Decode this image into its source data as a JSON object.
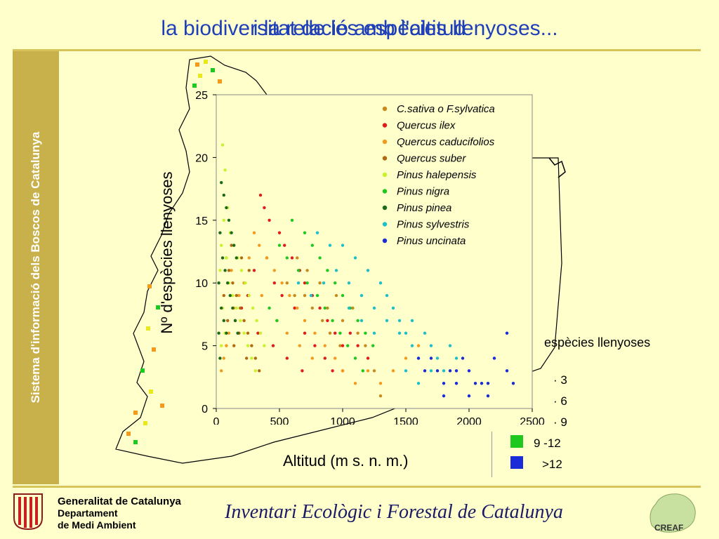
{
  "slide": {
    "title_back": "la biodiversitat de les espècies llenyoses...",
    "title_front": "i la relació amb l'altitud",
    "sidebar_text": "Sistema d'informació dels Boscos de Catalunya",
    "footer": {
      "gov_line1": "Generalitat de Catalunya",
      "gov_line2": "Departament",
      "gov_line3": "de Medi Ambient",
      "inventory": "Inventari Ecològic i Forestal de Catalunya",
      "creaf_label": "CREAF"
    },
    "map_legend": {
      "title": "espècies llenyoses",
      "items": [
        {
          "label": "· 3"
        },
        {
          "label": "· 6"
        },
        {
          "label": "· 9"
        },
        {
          "label": "9 -12",
          "color": "#1ec81e"
        },
        {
          "label": ">12",
          "color": "#1a2bd8"
        }
      ]
    }
  },
  "chart_data": {
    "type": "scatter",
    "xlabel": "Altitud (m s. n. m.)",
    "ylabel": "Nº d'espècies llenyoses",
    "xlim": [
      0,
      2500
    ],
    "ylim": [
      0,
      25
    ],
    "xticks": [
      0,
      500,
      1000,
      1500,
      2000,
      2500
    ],
    "yticks": [
      0,
      5,
      10,
      15,
      20,
      25
    ],
    "legend_position": "top-right",
    "series": [
      {
        "name": "C.sativa o F.sylvatica",
        "color": "#c98a1c",
        "points": [
          [
            560,
            10
          ],
          [
            620,
            9
          ],
          [
            700,
            9
          ],
          [
            760,
            8
          ],
          [
            820,
            10
          ],
          [
            880,
            8
          ],
          [
            950,
            9
          ],
          [
            1000,
            7
          ],
          [
            1080,
            8
          ],
          [
            1120,
            6
          ],
          [
            640,
            12
          ],
          [
            900,
            6
          ],
          [
            1250,
            3
          ],
          [
            1300,
            1
          ],
          [
            980,
            5
          ],
          [
            720,
            11
          ],
          [
            840,
            7
          ],
          [
            1180,
            5
          ]
        ]
      },
      {
        "name": "Quercus ilex",
        "color": "#e01c1c",
        "points": [
          [
            350,
            17
          ],
          [
            380,
            16
          ],
          [
            420,
            15
          ],
          [
            500,
            14
          ],
          [
            540,
            13
          ],
          [
            600,
            12
          ],
          [
            660,
            11
          ],
          [
            700,
            10
          ],
          [
            760,
            9
          ],
          [
            820,
            8
          ],
          [
            880,
            7
          ],
          [
            940,
            6
          ],
          [
            1000,
            5
          ],
          [
            1060,
            6
          ],
          [
            1120,
            5
          ],
          [
            1200,
            4
          ],
          [
            400,
            12
          ],
          [
            460,
            10
          ],
          [
            520,
            9
          ],
          [
            300,
            11
          ],
          [
            250,
            9
          ],
          [
            200,
            8
          ],
          [
            150,
            7
          ],
          [
            620,
            8
          ],
          [
            700,
            6
          ],
          [
            780,
            5
          ],
          [
            860,
            4
          ],
          [
            920,
            3
          ],
          [
            1000,
            3
          ],
          [
            330,
            6
          ],
          [
            450,
            5
          ],
          [
            560,
            4
          ],
          [
            680,
            3
          ]
        ]
      },
      {
        "name": "Quercus caducifolios",
        "color": "#f39a1c",
        "points": [
          [
            300,
            14
          ],
          [
            340,
            13
          ],
          [
            400,
            12
          ],
          [
            460,
            11
          ],
          [
            520,
            10
          ],
          [
            580,
            9
          ],
          [
            640,
            8
          ],
          [
            700,
            7
          ],
          [
            780,
            6
          ],
          [
            860,
            5
          ],
          [
            940,
            4
          ],
          [
            1000,
            3
          ],
          [
            1100,
            2
          ],
          [
            1200,
            3
          ],
          [
            260,
            12
          ],
          [
            220,
            10
          ],
          [
            180,
            9
          ],
          [
            140,
            8
          ],
          [
            100,
            6
          ],
          [
            80,
            5
          ],
          [
            60,
            4
          ],
          [
            40,
            3
          ],
          [
            120,
            11
          ],
          [
            360,
            9
          ],
          [
            480,
            7
          ],
          [
            560,
            6
          ],
          [
            660,
            5
          ],
          [
            760,
            4
          ],
          [
            1300,
            2
          ],
          [
            1400,
            3
          ],
          [
            1500,
            4
          ],
          [
            1600,
            5
          ]
        ]
      },
      {
        "name": "Quercus suber",
        "color": "#b06a10",
        "points": [
          [
            80,
            12
          ],
          [
            100,
            11
          ],
          [
            130,
            10
          ],
          [
            160,
            9
          ],
          [
            190,
            8
          ],
          [
            220,
            7
          ],
          [
            250,
            6
          ],
          [
            280,
            5
          ],
          [
            310,
            4
          ],
          [
            340,
            3
          ],
          [
            120,
            13
          ],
          [
            200,
            12
          ],
          [
            260,
            11
          ],
          [
            180,
            6
          ],
          [
            240,
            4
          ],
          [
            140,
            5
          ],
          [
            90,
            7
          ],
          [
            60,
            9
          ]
        ]
      },
      {
        "name": "Pinus halepensis",
        "color": "#c8f22a",
        "points": [
          [
            50,
            21
          ],
          [
            70,
            19
          ],
          [
            90,
            16
          ],
          [
            110,
            14
          ],
          [
            140,
            13
          ],
          [
            170,
            12
          ],
          [
            200,
            11
          ],
          [
            230,
            10
          ],
          [
            260,
            9
          ],
          [
            290,
            8
          ],
          [
            320,
            7
          ],
          [
            350,
            6
          ],
          [
            380,
            5
          ],
          [
            60,
            15
          ],
          [
            80,
            12
          ],
          [
            100,
            10
          ],
          [
            130,
            9
          ],
          [
            160,
            8
          ],
          [
            190,
            7
          ],
          [
            220,
            6
          ],
          [
            250,
            5
          ],
          [
            280,
            4
          ],
          [
            310,
            3
          ],
          [
            40,
            13
          ],
          [
            30,
            11
          ],
          [
            50,
            8
          ],
          [
            70,
            6
          ],
          [
            40,
            5
          ]
        ]
      },
      {
        "name": "Pinus nigra",
        "color": "#1ec81e",
        "points": [
          [
            600,
            15
          ],
          [
            700,
            14
          ],
          [
            760,
            13
          ],
          [
            820,
            12
          ],
          [
            880,
            11
          ],
          [
            940,
            10
          ],
          [
            1000,
            9
          ],
          [
            1060,
            8
          ],
          [
            1120,
            7
          ],
          [
            1180,
            6
          ],
          [
            1240,
            5
          ],
          [
            500,
            13
          ],
          [
            560,
            12
          ],
          [
            650,
            11
          ],
          [
            720,
            10
          ],
          [
            800,
            9
          ],
          [
            860,
            8
          ],
          [
            920,
            7
          ],
          [
            980,
            6
          ],
          [
            1040,
            5
          ],
          [
            1100,
            4
          ],
          [
            1160,
            3
          ],
          [
            420,
            8
          ],
          [
            480,
            7
          ]
        ]
      },
      {
        "name": "Pinus pinea",
        "color": "#1a6a1a",
        "points": [
          [
            40,
            18
          ],
          [
            60,
            17
          ],
          [
            80,
            16
          ],
          [
            100,
            15
          ],
          [
            120,
            14
          ],
          [
            140,
            13
          ],
          [
            160,
            12
          ],
          [
            30,
            14
          ],
          [
            50,
            12
          ],
          [
            70,
            11
          ],
          [
            90,
            10
          ],
          [
            110,
            9
          ],
          [
            130,
            8
          ],
          [
            150,
            7
          ],
          [
            170,
            6
          ],
          [
            20,
            10
          ],
          [
            40,
            8
          ],
          [
            60,
            7
          ],
          [
            80,
            6
          ],
          [
            20,
            6
          ],
          [
            30,
            4
          ]
        ]
      },
      {
        "name": "Pinus sylvestris",
        "color": "#1ec0c8",
        "points": [
          [
            800,
            14
          ],
          [
            900,
            13
          ],
          [
            1000,
            13
          ],
          [
            1100,
            12
          ],
          [
            1200,
            11
          ],
          [
            1300,
            10
          ],
          [
            1350,
            9
          ],
          [
            1400,
            8
          ],
          [
            1450,
            7
          ],
          [
            1500,
            6
          ],
          [
            1550,
            5
          ],
          [
            1600,
            4
          ],
          [
            1650,
            6
          ],
          [
            1700,
            5
          ],
          [
            1750,
            4
          ],
          [
            1800,
            3
          ],
          [
            950,
            11
          ],
          [
            1050,
            10
          ],
          [
            1150,
            9
          ],
          [
            1250,
            8
          ],
          [
            1350,
            7
          ],
          [
            1450,
            6
          ],
          [
            1550,
            7
          ],
          [
            1250,
            6
          ],
          [
            1150,
            7
          ],
          [
            1050,
            8
          ],
          [
            850,
            10
          ],
          [
            750,
            9
          ],
          [
            650,
            10
          ],
          [
            1850,
            5
          ],
          [
            1900,
            4
          ],
          [
            1700,
            3
          ],
          [
            1600,
            2
          ],
          [
            1500,
            3
          ]
        ]
      },
      {
        "name": "Pinus uncinata",
        "color": "#1a2bd8",
        "points": [
          [
            1600,
            4
          ],
          [
            1700,
            4
          ],
          [
            1750,
            3
          ],
          [
            1800,
            2
          ],
          [
            1850,
            3
          ],
          [
            1900,
            3
          ],
          [
            1950,
            4
          ],
          [
            2000,
            3
          ],
          [
            2050,
            2
          ],
          [
            2100,
            2
          ],
          [
            2150,
            1
          ],
          [
            2200,
            4
          ],
          [
            2300,
            3
          ],
          [
            2350,
            2
          ],
          [
            2300,
            6
          ],
          [
            1650,
            3
          ],
          [
            1800,
            1
          ],
          [
            1900,
            2
          ],
          [
            2000,
            1
          ],
          [
            2150,
            2
          ]
        ]
      }
    ]
  }
}
